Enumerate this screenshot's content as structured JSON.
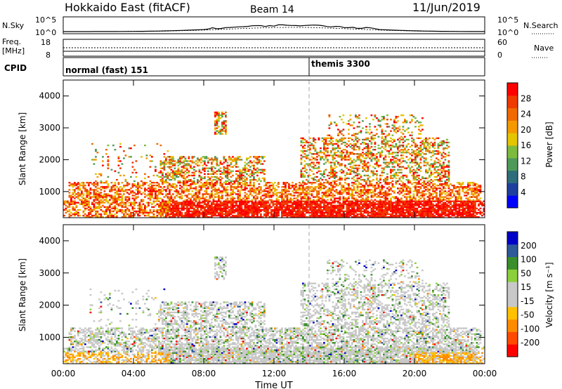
{
  "header": {
    "station": "Hokkaido East (fitACF)",
    "beam": "Beam 14",
    "date": "11/Jun/2019"
  },
  "top_strips": {
    "nsky_label": "N.Sky",
    "nsky_ticks": [
      "10^5",
      "10^0"
    ],
    "nsearch_label": "N.Search",
    "freq_label_line1": "Freq.",
    "freq_label_line2": "[MHz]",
    "freq_ticks": [
      "18",
      "8"
    ],
    "nave_ticks": [
      "60",
      "0"
    ],
    "nave_label": "Nave",
    "cpid_label": "CPID",
    "cpid_segments": [
      {
        "name": "normal (fast) 151",
        "start_hour": 0
      },
      {
        "name": "themis 3300",
        "start_hour": 14
      }
    ]
  },
  "time_axis": {
    "label": "Time UT",
    "tick_labels": [
      "00:00",
      "04:00",
      "08:00",
      "12:00",
      "16:00",
      "20:00",
      "00:00"
    ],
    "range_hours": [
      0,
      24
    ]
  },
  "chart_data": [
    {
      "type": "heatmap",
      "ylabel": "Slant Range [km]",
      "ylim": [
        180,
        4500
      ],
      "y_tick_labels": [
        "1000",
        "2000",
        "3000",
        "4000"
      ],
      "colorbar": {
        "label": "Power [dB]",
        "tick_labels": [
          "28",
          "24",
          "20",
          "16",
          "12",
          "8",
          "4"
        ],
        "range": [
          0,
          32
        ],
        "colors": [
          "#0000ff",
          "#1f3f9f",
          "#2e6e7a",
          "#4f9a5a",
          "#7dbb3f",
          "#e5c400",
          "#f49a00",
          "#f06a00",
          "#ef3a00",
          "#ff0000"
        ]
      }
    },
    {
      "type": "heatmap",
      "ylabel": "Slant Range [km]",
      "ylim": [
        180,
        4500
      ],
      "y_tick_labels": [
        "1000",
        "2000",
        "3000",
        "4000"
      ],
      "colorbar": {
        "label": "Velocity [m s⁻¹]",
        "tick_labels": [
          "200",
          "100",
          "50",
          "15",
          "-15",
          "-50",
          "-100",
          "-200"
        ],
        "range": [
          -250,
          250
        ],
        "colors": [
          "#ff0000",
          "#ff4a00",
          "#ff8c00",
          "#ffc000",
          "#c8c8c8",
          "#c8c8c8",
          "#8ccf3c",
          "#3a8f2a",
          "#2f5a9a",
          "#0000c8"
        ]
      }
    }
  ]
}
